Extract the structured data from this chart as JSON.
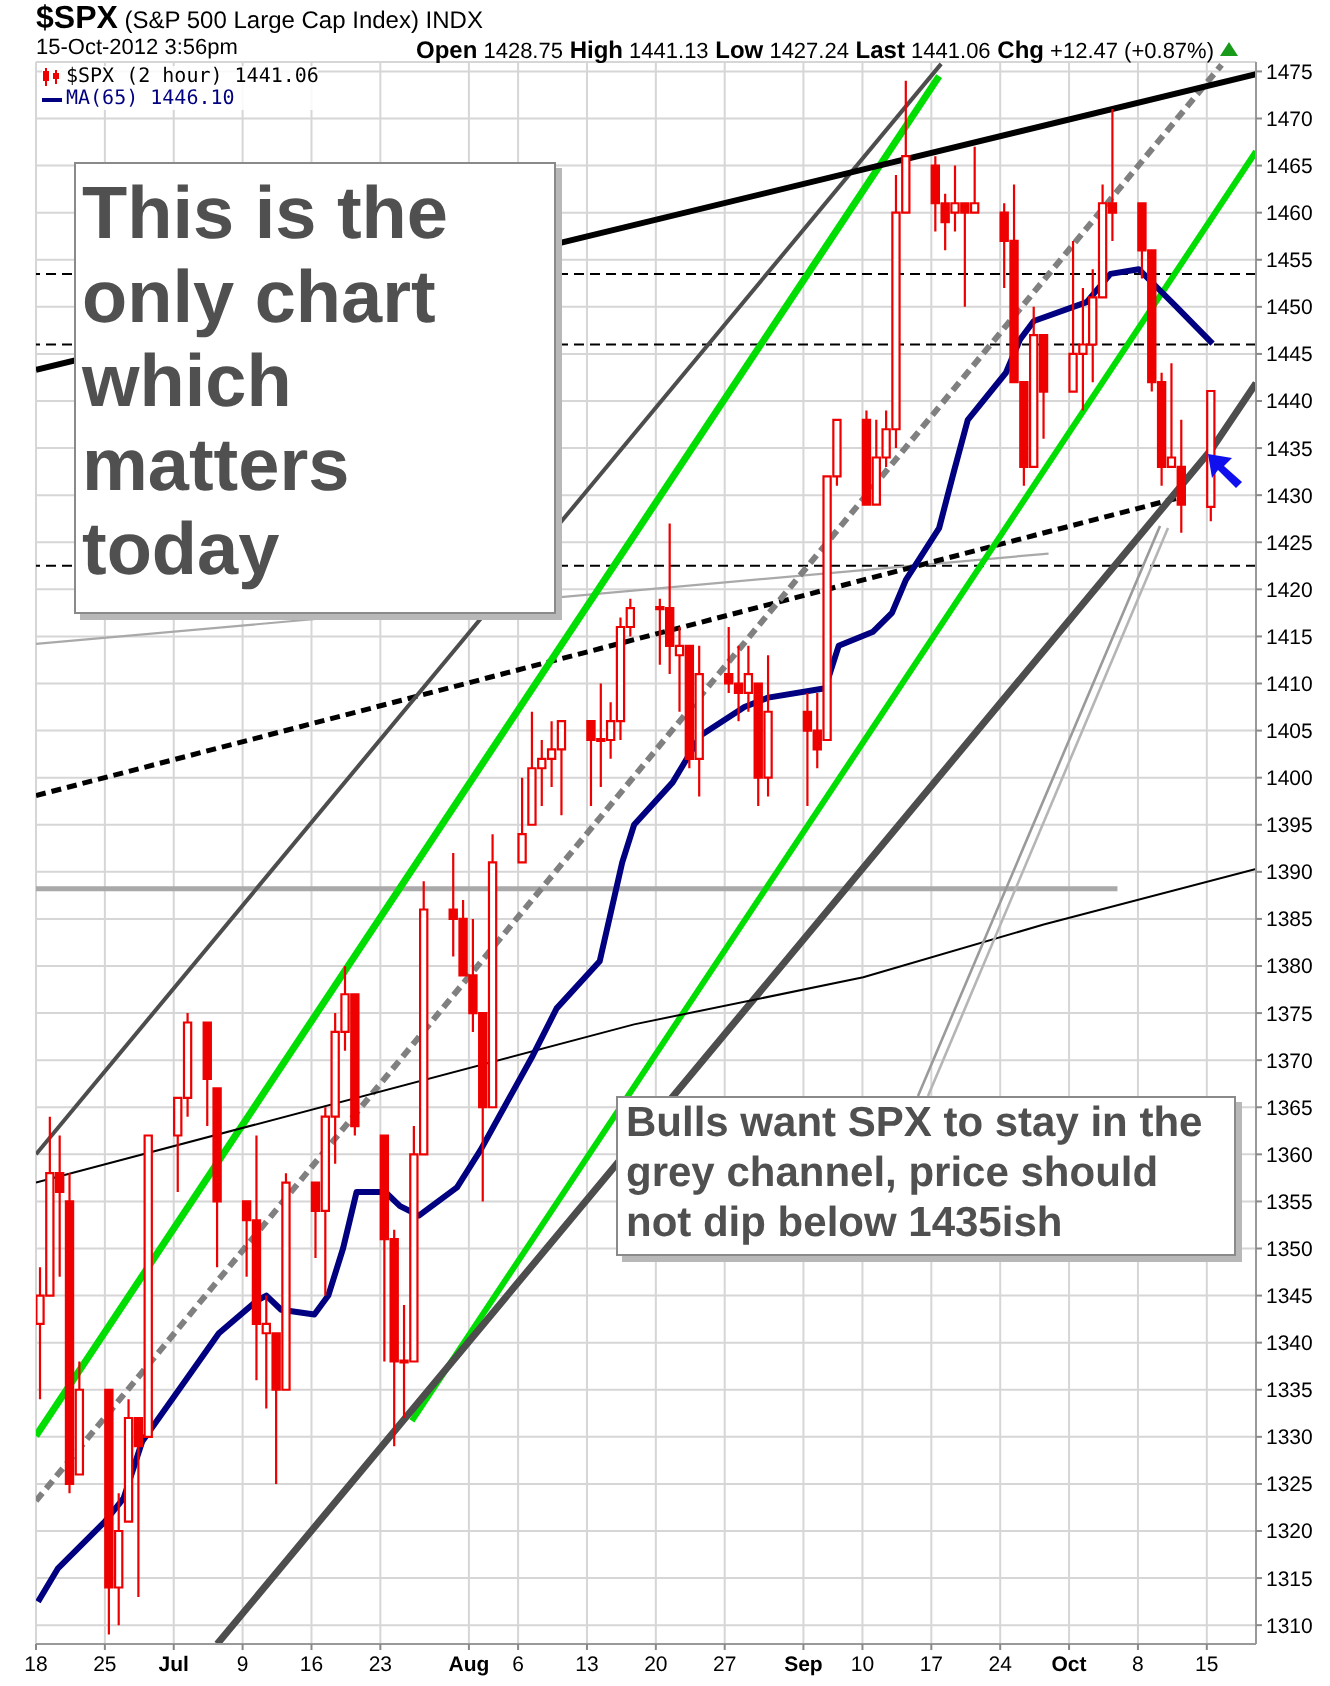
{
  "chart_data": {
    "type": "candlestick",
    "title": "$SPX (S&P 500 Large Cap Index) INDX",
    "subtitle": "15-Oct-2012 3:56pm",
    "annotations": [
      "Open 1428.75 High 1441.13 Low 1427.24 Last 1441.06 Chg +12.47 (+0.87%)",
      "This is the only chart which matters today",
      "Bulls want SPX to stay in the grey channel, price should not dip below 1435ish"
    ],
    "xlim": [
      "2012-06-18",
      "2012-10-20"
    ],
    "xticks": [
      {
        "value": "2012-06-18",
        "label": "18"
      },
      {
        "value": "2012-06-25",
        "label": "25"
      },
      {
        "value": "2012-07-02",
        "label": "Jul"
      },
      {
        "value": "2012-07-09",
        "label": "9"
      },
      {
        "value": "2012-07-16",
        "label": "16"
      },
      {
        "value": "2012-07-23",
        "label": "23"
      },
      {
        "value": "2012-08-01",
        "label": "Aug"
      },
      {
        "value": "2012-08-06",
        "label": "6"
      },
      {
        "value": "2012-08-13",
        "label": "13"
      },
      {
        "value": "2012-08-20",
        "label": "20"
      },
      {
        "value": "2012-08-27",
        "label": "27"
      },
      {
        "value": "2012-09-04",
        "label": "Sep"
      },
      {
        "value": "2012-09-10",
        "label": "10"
      },
      {
        "value": "2012-09-17",
        "label": "17"
      },
      {
        "value": "2012-09-24",
        "label": "24"
      },
      {
        "value": "2012-10-01",
        "label": "Oct"
      },
      {
        "value": "2012-10-08",
        "label": "8"
      },
      {
        "value": "2012-10-15",
        "label": "15"
      }
    ],
    "ylim": [
      1308,
      1476
    ],
    "yticks": [
      1310,
      1315,
      1320,
      1325,
      1330,
      1335,
      1340,
      1345,
      1350,
      1355,
      1360,
      1365,
      1370,
      1375,
      1380,
      1385,
      1390,
      1395,
      1400,
      1405,
      1410,
      1415,
      1420,
      1425,
      1430,
      1435,
      1440,
      1445,
      1450,
      1455,
      1460,
      1465,
      1470,
      1475
    ],
    "grid": true,
    "legend": "top left",
    "ref_lines": [
      {
        "axis": "y",
        "value": 1453.5,
        "color": "#000000",
        "line_style": "dashed"
      },
      {
        "axis": "y",
        "value": 1446,
        "color": "#000000",
        "line_style": "dashed"
      },
      {
        "axis": "y",
        "value": 1422.5,
        "color": "#000000",
        "line_style": "dashed"
      }
    ],
    "series": [
      {
        "name": "$SPX (2 hour) 1441.06",
        "color": "#ee0000",
        "x": [
          "2012-06-18T12:00",
          "2012-06-19T12:00",
          "2012-06-20T12:00",
          "2012-06-21T12:00",
          "2012-06-22T12:00",
          "2012-06-25T12:00",
          "2012-06-26T12:00",
          "2012-06-27T12:00",
          "2012-06-28T12:00",
          "2012-06-29T12:00",
          "2012-07-02T12:00",
          "2012-07-03T12:00",
          "2012-07-05T12:00",
          "2012-07-06T12:00",
          "2012-07-09T12:00",
          "2012-07-10T12:00",
          "2012-07-11T12:00",
          "2012-07-12T12:00",
          "2012-07-13T12:00",
          "2012-07-16T12:00",
          "2012-07-17T12:00",
          "2012-07-18T12:00",
          "2012-07-19T12:00",
          "2012-07-20T12:00",
          "2012-07-23T12:00",
          "2012-07-24T12:00",
          "2012-07-25T12:00",
          "2012-07-26T12:00",
          "2012-07-27T12:00",
          "2012-07-30T12:00",
          "2012-07-31T12:00",
          "2012-08-01T12:00",
          "2012-08-02T12:00",
          "2012-08-03T12:00",
          "2012-08-06T12:00",
          "2012-08-07T12:00",
          "2012-08-08T12:00",
          "2012-08-09T12:00",
          "2012-08-10T12:00",
          "2012-08-13T12:00",
          "2012-08-14T12:00",
          "2012-08-15T12:00",
          "2012-08-16T12:00",
          "2012-08-17T12:00",
          "2012-08-20T12:00",
          "2012-08-21T12:00",
          "2012-08-22T12:00",
          "2012-08-23T12:00",
          "2012-08-24T12:00",
          "2012-08-27T12:00",
          "2012-08-28T12:00",
          "2012-08-29T12:00",
          "2012-08-30T12:00",
          "2012-08-31T12:00",
          "2012-09-04T12:00",
          "2012-09-05T12:00",
          "2012-09-06T12:00",
          "2012-09-07T12:00",
          "2012-09-10T12:00",
          "2012-09-11T12:00",
          "2012-09-12T12:00",
          "2012-09-13T12:00",
          "2012-09-14T12:00",
          "2012-09-17T12:00",
          "2012-09-18T12:00",
          "2012-09-19T12:00",
          "2012-09-20T12:00",
          "2012-09-21T12:00",
          "2012-09-24T12:00",
          "2012-09-25T12:00",
          "2012-09-26T12:00",
          "2012-09-27T12:00",
          "2012-09-28T12:00",
          "2012-10-01T12:00",
          "2012-10-02T12:00",
          "2012-10-03T12:00",
          "2012-10-04T12:00",
          "2012-10-05T12:00",
          "2012-10-08T12:00",
          "2012-10-09T12:00",
          "2012-10-10T12:00",
          "2012-10-11T12:00",
          "2012-10-12T12:00",
          "2012-10-15T12:00"
        ],
        "ohlc": [
          [
            1342,
            1348,
            1334,
            1345
          ],
          [
            1345,
            1364,
            1345,
            1358
          ],
          [
            1358,
            1362,
            1347,
            1356
          ],
          [
            1355,
            1358,
            1324,
            1325
          ],
          [
            1326,
            1338,
            1326,
            1335
          ],
          [
            1335,
            1335,
            1309,
            1314
          ],
          [
            1314,
            1324,
            1310,
            1320
          ],
          [
            1321,
            1334,
            1321,
            1332
          ],
          [
            1332,
            1332,
            1313,
            1329
          ],
          [
            1330,
            1362,
            1330,
            1362
          ],
          [
            1362,
            1366,
            1356,
            1366
          ],
          [
            1366,
            1375,
            1364,
            1374
          ],
          [
            1374,
            1374,
            1363,
            1368
          ],
          [
            1367,
            1367,
            1348,
            1355
          ],
          [
            1355,
            1355,
            1347,
            1353
          ],
          [
            1353,
            1362,
            1336,
            1342
          ],
          [
            1341,
            1345,
            1333,
            1342
          ],
          [
            1341,
            1341,
            1325,
            1335
          ],
          [
            1335,
            1358,
            1335,
            1357
          ],
          [
            1357,
            1357,
            1349,
            1354
          ],
          [
            1354,
            1365,
            1345,
            1364
          ],
          [
            1364,
            1375,
            1359,
            1373
          ],
          [
            1373,
            1380,
            1371,
            1377
          ],
          [
            1377,
            1377,
            1362,
            1363
          ],
          [
            1362,
            1362,
            1338,
            1351
          ],
          [
            1351,
            1352,
            1329,
            1338
          ],
          [
            1338,
            1344,
            1332,
            1338
          ],
          [
            1338,
            1363,
            1338,
            1360
          ],
          [
            1360,
            1389,
            1360,
            1386
          ],
          [
            1386,
            1392,
            1381,
            1385
          ],
          [
            1385,
            1387,
            1379,
            1379
          ],
          [
            1379,
            1385,
            1373,
            1375
          ],
          [
            1375,
            1375,
            1355,
            1365
          ],
          [
            1365,
            1394,
            1365,
            1391
          ],
          [
            1391,
            1400,
            1391,
            1394
          ],
          [
            1395,
            1407,
            1395,
            1401
          ],
          [
            1401,
            1404,
            1397,
            1402
          ],
          [
            1402,
            1406,
            1399,
            1403
          ],
          [
            1403,
            1406,
            1396,
            1406
          ],
          [
            1406,
            1406,
            1397,
            1404
          ],
          [
            1404,
            1410,
            1399,
            1404
          ],
          [
            1404,
            1408,
            1402,
            1406
          ],
          [
            1406,
            1417,
            1404,
            1416
          ],
          [
            1416,
            1419,
            1415,
            1418
          ],
          [
            1418,
            1419,
            1412,
            1418
          ],
          [
            1418,
            1427,
            1411,
            1414
          ],
          [
            1413,
            1416,
            1407,
            1414
          ],
          [
            1414,
            1414,
            1401,
            1402
          ],
          [
            1402,
            1414,
            1398,
            1411
          ],
          [
            1411,
            1416,
            1409,
            1410
          ],
          [
            1410,
            1414,
            1406,
            1409
          ],
          [
            1409,
            1414,
            1407,
            1411
          ],
          [
            1410,
            1410,
            1397,
            1400
          ],
          [
            1400,
            1413,
            1398,
            1407
          ],
          [
            1407,
            1409,
            1397,
            1405
          ],
          [
            1405,
            1409,
            1401,
            1403
          ],
          [
            1404,
            1432,
            1404,
            1432
          ],
          [
            1432,
            1438,
            1431,
            1438
          ],
          [
            1438,
            1439,
            1429,
            1429
          ],
          [
            1429,
            1438,
            1429,
            1434
          ],
          [
            1434,
            1439,
            1433,
            1437
          ],
          [
            1437,
            1464,
            1435,
            1460
          ],
          [
            1460,
            1474,
            1460,
            1466
          ],
          [
            1465,
            1466,
            1458,
            1461
          ],
          [
            1461,
            1462,
            1456,
            1459
          ],
          [
            1460,
            1465,
            1458,
            1461
          ],
          [
            1461,
            1461,
            1450,
            1460
          ],
          [
            1460,
            1467,
            1460,
            1461
          ],
          [
            1460,
            1461,
            1452,
            1457
          ],
          [
            1457,
            1463,
            1442,
            1442
          ],
          [
            1442,
            1442,
            1431,
            1433
          ],
          [
            1433,
            1450,
            1433,
            1447
          ],
          [
            1447,
            1447,
            1436,
            1441
          ],
          [
            1441,
            1457,
            1441,
            1445
          ],
          [
            1445,
            1452,
            1439,
            1446
          ],
          [
            1446,
            1454,
            1442,
            1451
          ],
          [
            1451,
            1463,
            1451,
            1461
          ],
          [
            1461,
            1471,
            1457,
            1460
          ],
          [
            1461,
            1461,
            1453,
            1456
          ],
          [
            1456,
            1456,
            1441,
            1442
          ],
          [
            1442,
            1443,
            1431,
            1433
          ],
          [
            1433,
            1444,
            1433,
            1434
          ],
          [
            1433,
            1438,
            1426,
            1429
          ],
          [
            1428.75,
            1441.13,
            1427.24,
            1441.06
          ]
        ]
      },
      {
        "name": "MA(65) 1446.10",
        "type": "line",
        "color": "#000080",
        "x": [
          "2012-06-18T05:00",
          "2012-06-20T05:00",
          "2012-06-25T00:00",
          "2012-06-26T22:00",
          "2012-06-28T19:00",
          "2012-07-03T05:00",
          "2012-07-06T14:00",
          "2012-07-10T12:00",
          "2012-07-11T10:00",
          "2012-07-12T22:00",
          "2012-07-16T07:00",
          "2012-07-17T17:00",
          "2012-07-19T05:00",
          "2012-07-20T14:00",
          "2012-07-23T12:00",
          "2012-07-25T00:00",
          "2012-07-26T22:00",
          "2012-07-30T19:00",
          "2012-08-02T05:00",
          "2012-08-07T12:00",
          "2012-08-09T22:00",
          "2012-08-14T07:00",
          "2012-08-16T14:00",
          "2012-08-17T19:00",
          "2012-08-21T17:00",
          "2012-08-24T14:00",
          "2012-08-29T00:00",
          "2012-08-31T10:00",
          "2012-09-06T05:00",
          "2012-09-07T14:00",
          "2012-09-11T02:00",
          "2012-09-13T00:00",
          "2012-09-14T10:00",
          "2012-09-17T19:00",
          "2012-09-19T07:00",
          "2012-09-20T17:00",
          "2012-09-24T14:00",
          "2012-09-26T00:00",
          "2012-09-27T10:00",
          "2012-10-02T19:00",
          "2012-10-05T05:00",
          "2012-10-08T02:00",
          "2012-10-10T00:00",
          "2012-10-11T22:00",
          "2012-10-15T14:00"
        ],
        "values": [
          1312.5,
          1316,
          1321,
          1323.5,
          1329.5,
          1336,
          1341,
          1344.5,
          1345,
          1343.5,
          1343,
          1345,
          1350,
          1356,
          1356,
          1354.5,
          1353.5,
          1356.5,
          1360.5,
          1370.5,
          1375.5,
          1380.5,
          1391,
          1395,
          1399.5,
          1404.5,
          1407.5,
          1408.5,
          1409.5,
          1414,
          1415.5,
          1417.5,
          1421,
          1426.5,
          1432.5,
          1438,
          1443,
          1446.5,
          1448.5,
          1450.5,
          1453.5,
          1454,
          1452,
          1450,
          1446.1
        ]
      },
      {
        "type": "line",
        "color": "#000000",
        "x": [
          "2012-06-18",
          "2012-10-20"
        ],
        "values": [
          1443.3,
          1474.7
        ]
      },
      {
        "type": "line",
        "color": "#000000",
        "x": [
          "2012-06-18",
          "2012-08-17T19:00",
          "2012-09-10T02:00",
          "2012-09-28T10:00",
          "2012-10-20"
        ],
        "values": [
          1357,
          1373.8,
          1378.8,
          1384.4,
          1390.3
        ]
      },
      {
        "type": "line",
        "color": "#4d4d4d",
        "x": [
          "2012-06-18",
          "2012-09-18"
        ],
        "values": [
          1360,
          1475.8
        ]
      },
      {
        "type": "line",
        "color": "#4d4d4d",
        "x": [
          "2012-07-06T10:00",
          "2012-10-15T12:00",
          "2012-10-20"
        ],
        "values": [
          1308,
          1434.9,
          1441.9
        ]
      },
      {
        "type": "line",
        "color": "#00dd00",
        "x": [
          "2012-06-18",
          "2012-09-17T19:00"
        ],
        "values": [
          1330.1,
          1474.5
        ]
      },
      {
        "type": "line",
        "color": "#00dd00",
        "x": [
          "2012-07-26T05:00",
          "2012-10-20"
        ],
        "values": [
          1331.7,
          1466.5
        ]
      },
      {
        "type": "line",
        "color": "#808080",
        "line_style": "dashed",
        "x": [
          "2012-06-18",
          "2012-10-16T12:00"
        ],
        "values": [
          1323.2,
          1475.7
        ]
      },
      {
        "type": "line",
        "color": "#000000",
        "line_style": "dashed",
        "x": [
          "2012-06-18",
          "2012-10-12T10:00"
        ],
        "values": [
          1398.1,
          1429.8
        ]
      },
      {
        "type": "line",
        "color": "#a9a9a9",
        "x": [
          "2012-06-18",
          "2012-10-05T22:00"
        ],
        "values": [
          1388.2,
          1388.2
        ]
      },
      {
        "type": "line",
        "color": "#a9a9a9",
        "x": [
          "2012-06-18",
          "2012-09-28T22:00"
        ],
        "values": [
          1414.2,
          1423.8
        ]
      }
    ]
  }
}
